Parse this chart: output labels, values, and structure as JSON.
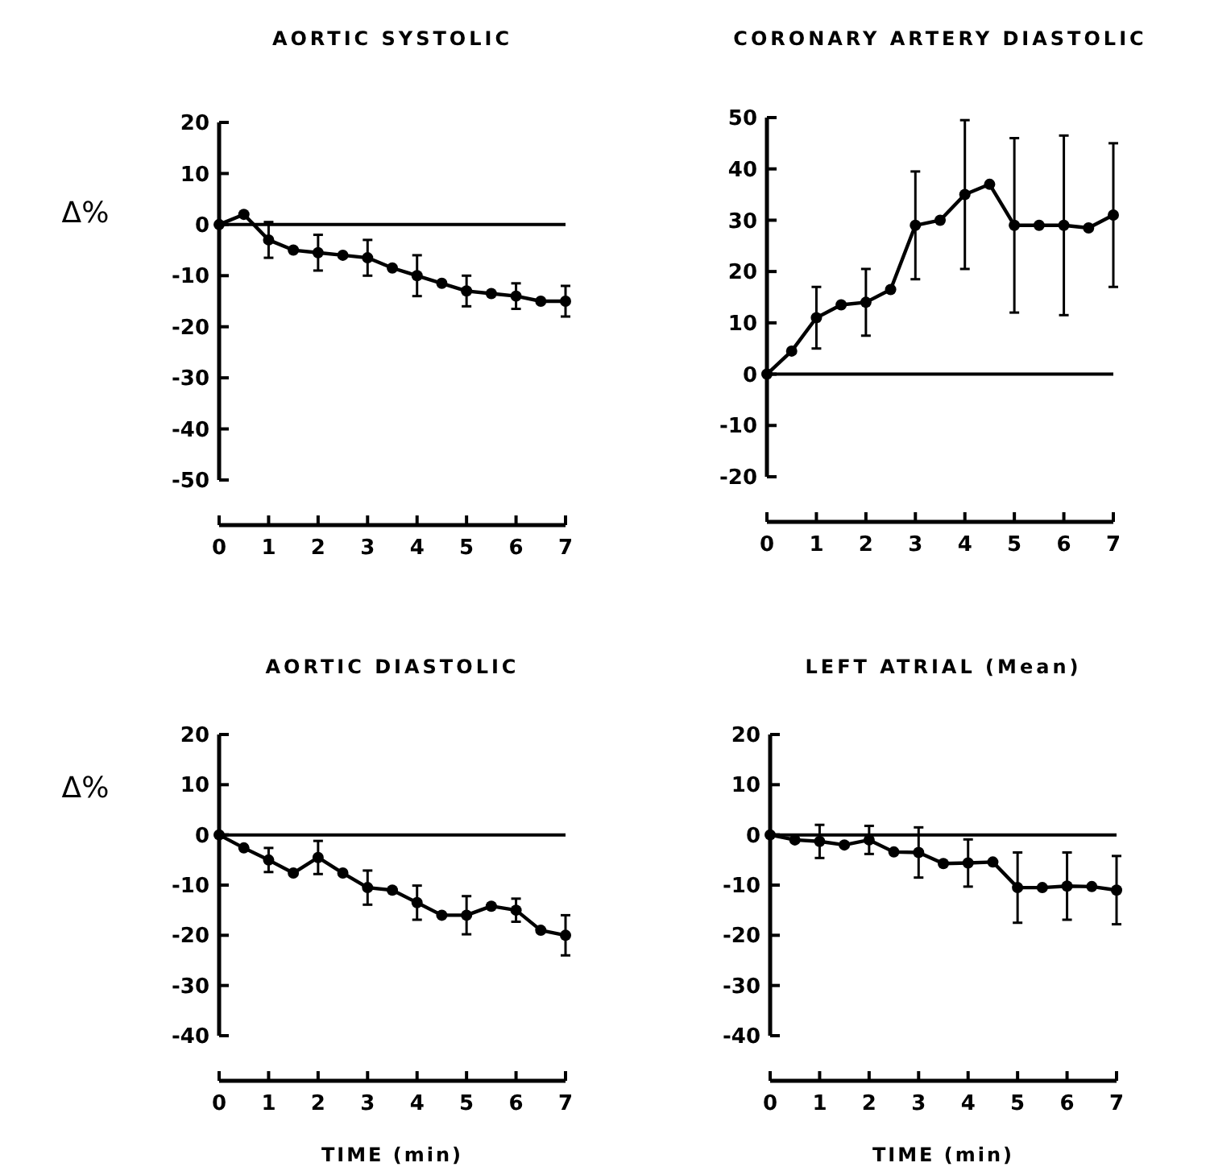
{
  "chart_data": [
    {
      "type": "line",
      "title": "AORTIC SYSTOLIC",
      "ylabel": "Δ%",
      "x": [
        0,
        0.5,
        1,
        1.5,
        2,
        2.5,
        3,
        3.5,
        4,
        4.5,
        5,
        5.5,
        6,
        6.5,
        7
      ],
      "series": [
        {
          "color": "#000000",
          "values": [
            0,
            2,
            -3,
            -5,
            -5.5,
            -6,
            -6.5,
            -8.5,
            -10,
            -11.5,
            -13,
            -13.5,
            -14,
            -15,
            -15
          ],
          "errors": [
            null,
            null,
            3.5,
            null,
            3.5,
            null,
            3.5,
            null,
            4,
            null,
            3,
            null,
            2.5,
            null,
            3
          ]
        }
      ],
      "xlim": [
        0,
        7
      ],
      "xticks": [
        0,
        1,
        2,
        3,
        4,
        5,
        6,
        7
      ],
      "ylim": [
        -50,
        20
      ],
      "yticks": [
        -50,
        -40,
        -30,
        -20,
        -10,
        0,
        10,
        20
      ],
      "marker": "circle",
      "ref_lines": [
        {
          "axis": "y",
          "value": 0
        }
      ]
    },
    {
      "type": "line",
      "title": "CORONARY ARTERY DIASTOLIC",
      "x": [
        0,
        0.5,
        1,
        1.5,
        2,
        2.5,
        3,
        3.5,
        4,
        4.5,
        5,
        5.5,
        6,
        6.5,
        7
      ],
      "series": [
        {
          "color": "#000000",
          "values": [
            0,
            4.5,
            11,
            13.5,
            14,
            16.5,
            29,
            30,
            35,
            37,
            29,
            29,
            29,
            28.5,
            31
          ],
          "errors": [
            null,
            null,
            6,
            null,
            6.5,
            null,
            10.5,
            null,
            14.5,
            null,
            17,
            null,
            17.5,
            null,
            14
          ]
        }
      ],
      "xlim": [
        0,
        7
      ],
      "xticks": [
        0,
        1,
        2,
        3,
        4,
        5,
        6,
        7
      ],
      "ylim": [
        -20,
        50
      ],
      "yticks": [
        -20,
        -10,
        0,
        10,
        20,
        30,
        40,
        50
      ],
      "marker": "circle",
      "ref_lines": [
        {
          "axis": "y",
          "value": 0
        }
      ]
    },
    {
      "type": "line",
      "title": "AORTIC DIASTOLIC",
      "ylabel": "Δ%",
      "xlabel": "TIME (min)",
      "x": [
        0,
        0.5,
        1,
        1.5,
        2,
        2.5,
        3,
        3.5,
        4,
        4.5,
        5,
        5.5,
        6,
        6.5,
        7
      ],
      "series": [
        {
          "color": "#000000",
          "values": [
            0,
            -2.6,
            -5,
            -7.6,
            -4.5,
            -7.6,
            -10.5,
            -11,
            -13.5,
            -16,
            -16,
            -14.2,
            -15,
            -19,
            -20
          ],
          "errors": [
            null,
            null,
            2.4,
            null,
            3.3,
            null,
            3.4,
            null,
            3.4,
            null,
            3.8,
            null,
            2.3,
            null,
            4
          ]
        }
      ],
      "xlim": [
        0,
        7
      ],
      "xticks": [
        0,
        1,
        2,
        3,
        4,
        5,
        6,
        7
      ],
      "ylim": [
        -40,
        20
      ],
      "yticks": [
        -40,
        -30,
        -20,
        -10,
        0,
        10,
        20
      ],
      "marker": "circle",
      "ref_lines": [
        {
          "axis": "y",
          "value": 0
        }
      ]
    },
    {
      "type": "line",
      "title": "LEFT ATRIAL (Mean)",
      "xlabel": "TIME (min)",
      "x": [
        0,
        0.5,
        1,
        1.5,
        2,
        2.5,
        3,
        3.5,
        4,
        4.5,
        5,
        5.5,
        6,
        6.5,
        7
      ],
      "series": [
        {
          "color": "#000000",
          "values": [
            0,
            -1,
            -1.3,
            -2,
            -1,
            -3.4,
            -3.5,
            -5.7,
            -5.6,
            -5.4,
            -10.5,
            -10.5,
            -10.2,
            -10.3,
            -11
          ],
          "errors": [
            null,
            null,
            3.3,
            null,
            2.8,
            null,
            5,
            null,
            4.7,
            null,
            7,
            null,
            6.7,
            null,
            6.8
          ]
        }
      ],
      "xlim": [
        0,
        7
      ],
      "xticks": [
        0,
        1,
        2,
        3,
        4,
        5,
        6,
        7
      ],
      "ylim": [
        -40,
        20
      ],
      "yticks": [
        -40,
        -30,
        -20,
        -10,
        0,
        10,
        20
      ],
      "marker": "circle",
      "ref_lines": [
        {
          "axis": "y",
          "value": 0
        }
      ]
    }
  ]
}
